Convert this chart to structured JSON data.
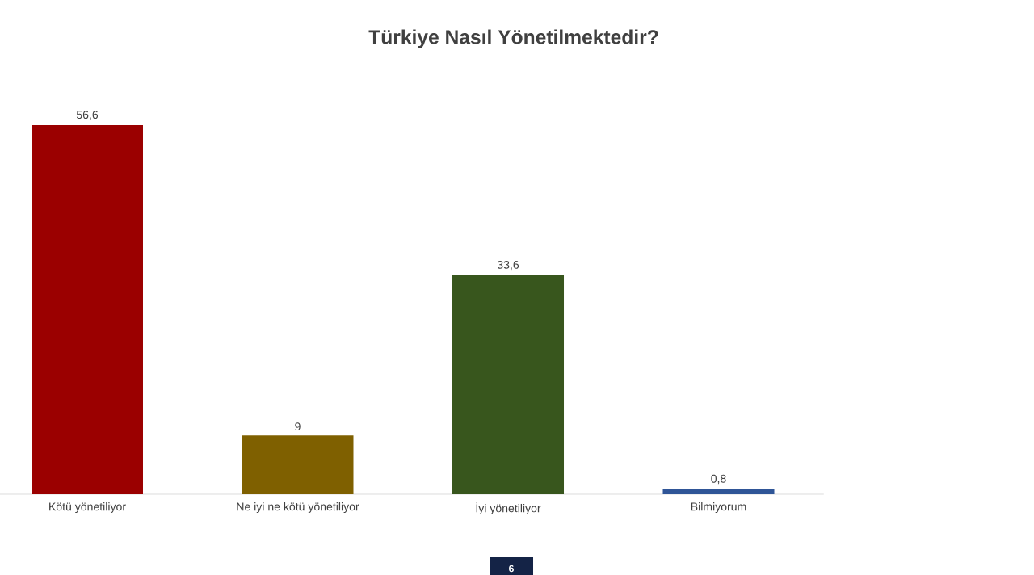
{
  "chart_data": {
    "type": "bar",
    "title": "Türkiye Nasıl Yönetilmektedir?",
    "categories": [
      "Kötü yönetiliyor",
      "Ne iyi ne kötü yönetiliyor",
      "İyi yönetiliyor",
      "Bilmiyorum"
    ],
    "values": [
      56.6,
      9,
      33.6,
      0.8
    ],
    "colors": [
      "#9b0000",
      "#7f6000",
      "#38561d",
      "#2f5597"
    ],
    "value_labels": [
      "56,6",
      "9",
      "33,6",
      "0,8"
    ],
    "annotations": [
      "6"
    ]
  }
}
